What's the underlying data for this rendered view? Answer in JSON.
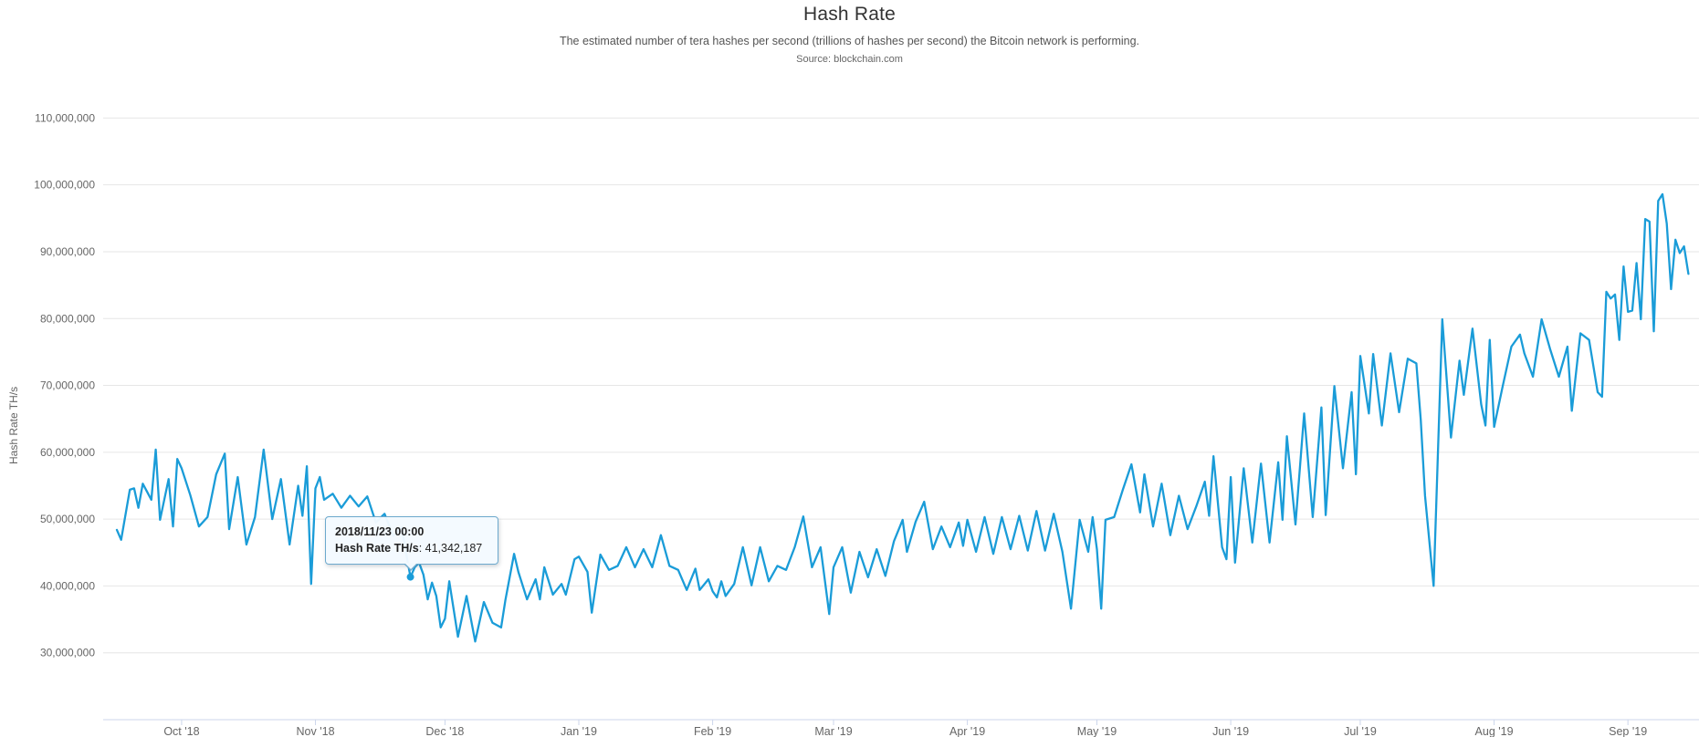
{
  "header": {
    "title": "Hash Rate",
    "subtitle": "The estimated number of tera hashes per second (trillions of hashes per second) the Bitcoin network is performing.",
    "source": "Source: blockchain.com"
  },
  "y_axis": {
    "title": "Hash Rate TH/s",
    "tick_values_m": [
      30,
      40,
      50,
      60,
      70,
      80,
      90,
      100,
      110
    ],
    "tick_labels": [
      "30,000,000",
      "40,000,000",
      "50,000,000",
      "60,000,000",
      "70,000,000",
      "80,000,000",
      "90,000,000",
      "100,000,000",
      "110,000,000"
    ]
  },
  "x_axis": {
    "tick_labels": [
      "Oct '18",
      "Nov '18",
      "Dec '18",
      "Jan '19",
      "Feb '19",
      "Mar '19",
      "Apr '19",
      "May '19",
      "Jun '19",
      "Jul '19",
      "Aug '19",
      "Sep '19"
    ],
    "tick_days": [
      15,
      46,
      76,
      107,
      138,
      166,
      197,
      227,
      258,
      288,
      319,
      350
    ]
  },
  "tooltip": {
    "date": "2018/11/23 00:00",
    "label": "Hash Rate TH/s",
    "separator": ": ",
    "value": "41,342,187",
    "point_day": 68,
    "point_value_m": 41.34
  },
  "colors": {
    "line": "#1a9cd8",
    "grid": "#e6e6e6",
    "axis": "#ccd6eb",
    "tick_text": "#666666",
    "title_text": "#333333",
    "tooltip_border": "#6da9cd"
  },
  "chart_data": {
    "type": "line",
    "title": "Hash Rate",
    "ylabel": "Hash Rate TH/s",
    "unit": "TH/s, stored in millions",
    "x_unit": "day offset from 2018-09-16, daily data",
    "start_date": "2018-09-16",
    "ylim_m": [
      20,
      115
    ],
    "grid": true,
    "legend": false,
    "series": [
      {
        "name": "Hash Rate",
        "points": [
          [
            0,
            48.4
          ],
          [
            1,
            46.9
          ],
          [
            3,
            54.4
          ],
          [
            4,
            54.6
          ],
          [
            5,
            51.7
          ],
          [
            6,
            55.3
          ],
          [
            8,
            52.9
          ],
          [
            9,
            60.4
          ],
          [
            10,
            49.9
          ],
          [
            12,
            56.0
          ],
          [
            13,
            48.9
          ],
          [
            14,
            59.0
          ],
          [
            15,
            57.6
          ],
          [
            17,
            53.6
          ],
          [
            19,
            48.9
          ],
          [
            21,
            50.3
          ],
          [
            23,
            56.7
          ],
          [
            25,
            59.8
          ],
          [
            26,
            48.5
          ],
          [
            28,
            56.3
          ],
          [
            30,
            46.2
          ],
          [
            32,
            50.3
          ],
          [
            34,
            60.4
          ],
          [
            36,
            50.0
          ],
          [
            38,
            56.0
          ],
          [
            40,
            46.2
          ],
          [
            42,
            55.0
          ],
          [
            43,
            50.5
          ],
          [
            44,
            57.9
          ],
          [
            45,
            40.3
          ],
          [
            46,
            54.6
          ],
          [
            47,
            56.3
          ],
          [
            48,
            52.9
          ],
          [
            50,
            53.8
          ],
          [
            52,
            51.7
          ],
          [
            54,
            53.5
          ],
          [
            56,
            51.9
          ],
          [
            58,
            53.4
          ],
          [
            60,
            49.5
          ],
          [
            62,
            50.8
          ],
          [
            64,
            47.5
          ],
          [
            66,
            48.8
          ],
          [
            67,
            44.9
          ],
          [
            68,
            41.34
          ],
          [
            69,
            42.8
          ],
          [
            70,
            43.5
          ],
          [
            71,
            41.7
          ],
          [
            72,
            38.0
          ],
          [
            73,
            40.5
          ],
          [
            74,
            38.5
          ],
          [
            75,
            33.8
          ],
          [
            76,
            35.1
          ],
          [
            77,
            40.7
          ],
          [
            79,
            32.4
          ],
          [
            81,
            38.5
          ],
          [
            83,
            31.7
          ],
          [
            85,
            37.6
          ],
          [
            87,
            34.5
          ],
          [
            89,
            33.8
          ],
          [
            90,
            37.9
          ],
          [
            92,
            44.8
          ],
          [
            93,
            42.1
          ],
          [
            95,
            38.0
          ],
          [
            97,
            41.0
          ],
          [
            98,
            38.0
          ],
          [
            99,
            42.8
          ],
          [
            101,
            38.7
          ],
          [
            103,
            40.3
          ],
          [
            104,
            38.7
          ],
          [
            106,
            44.0
          ],
          [
            107,
            44.4
          ],
          [
            109,
            42.1
          ],
          [
            110,
            36.0
          ],
          [
            112,
            44.7
          ],
          [
            114,
            42.4
          ],
          [
            116,
            43.0
          ],
          [
            118,
            45.8
          ],
          [
            120,
            42.8
          ],
          [
            122,
            45.5
          ],
          [
            124,
            42.8
          ],
          [
            126,
            47.6
          ],
          [
            128,
            43.0
          ],
          [
            130,
            42.4
          ],
          [
            132,
            39.4
          ],
          [
            134,
            42.6
          ],
          [
            135,
            39.4
          ],
          [
            137,
            41.0
          ],
          [
            138,
            39.2
          ],
          [
            139,
            38.3
          ],
          [
            140,
            40.7
          ],
          [
            141,
            38.5
          ],
          [
            143,
            40.3
          ],
          [
            145,
            45.8
          ],
          [
            147,
            40.1
          ],
          [
            149,
            45.8
          ],
          [
            151,
            40.7
          ],
          [
            153,
            43.0
          ],
          [
            155,
            42.4
          ],
          [
            157,
            45.8
          ],
          [
            159,
            50.4
          ],
          [
            161,
            42.8
          ],
          [
            163,
            45.8
          ],
          [
            165,
            35.8
          ],
          [
            166,
            42.8
          ],
          [
            168,
            45.8
          ],
          [
            170,
            39.0
          ],
          [
            172,
            45.1
          ],
          [
            174,
            41.3
          ],
          [
            176,
            45.5
          ],
          [
            178,
            41.5
          ],
          [
            180,
            46.7
          ],
          [
            182,
            49.9
          ],
          [
            183,
            45.1
          ],
          [
            185,
            49.6
          ],
          [
            187,
            52.6
          ],
          [
            189,
            45.5
          ],
          [
            191,
            48.9
          ],
          [
            193,
            45.8
          ],
          [
            195,
            49.5
          ],
          [
            196,
            46.0
          ],
          [
            197,
            49.9
          ],
          [
            199,
            45.1
          ],
          [
            201,
            50.3
          ],
          [
            203,
            44.8
          ],
          [
            205,
            50.3
          ],
          [
            207,
            45.5
          ],
          [
            209,
            50.5
          ],
          [
            211,
            45.3
          ],
          [
            213,
            51.2
          ],
          [
            215,
            45.3
          ],
          [
            217,
            50.8
          ],
          [
            219,
            45.1
          ],
          [
            221,
            36.6
          ],
          [
            223,
            49.9
          ],
          [
            225,
            45.1
          ],
          [
            226,
            50.3
          ],
          [
            227,
            45.5
          ],
          [
            228,
            36.6
          ],
          [
            229,
            49.9
          ],
          [
            231,
            50.3
          ],
          [
            233,
            54.4
          ],
          [
            235,
            58.2
          ],
          [
            237,
            51.0
          ],
          [
            238,
            56.7
          ],
          [
            240,
            48.9
          ],
          [
            242,
            55.3
          ],
          [
            244,
            47.6
          ],
          [
            246,
            53.5
          ],
          [
            248,
            48.5
          ],
          [
            250,
            51.9
          ],
          [
            252,
            55.6
          ],
          [
            253,
            50.5
          ],
          [
            254,
            59.4
          ],
          [
            256,
            45.8
          ],
          [
            257,
            44.0
          ],
          [
            258,
            56.3
          ],
          [
            259,
            43.5
          ],
          [
            261,
            57.6
          ],
          [
            263,
            46.5
          ],
          [
            265,
            58.3
          ],
          [
            267,
            46.5
          ],
          [
            269,
            58.5
          ],
          [
            270,
            49.9
          ],
          [
            271,
            62.4
          ],
          [
            273,
            49.2
          ],
          [
            275,
            65.8
          ],
          [
            277,
            50.3
          ],
          [
            279,
            66.7
          ],
          [
            280,
            50.6
          ],
          [
            282,
            69.9
          ],
          [
            284,
            57.6
          ],
          [
            286,
            69.0
          ],
          [
            287,
            56.7
          ],
          [
            288,
            74.4
          ],
          [
            290,
            65.8
          ],
          [
            291,
            74.7
          ],
          [
            293,
            64.0
          ],
          [
            295,
            74.8
          ],
          [
            297,
            66.0
          ],
          [
            299,
            74.0
          ],
          [
            301,
            73.3
          ],
          [
            302,
            64.9
          ],
          [
            303,
            53.5
          ],
          [
            305,
            40.0
          ],
          [
            307,
            79.9
          ],
          [
            309,
            62.2
          ],
          [
            311,
            73.7
          ],
          [
            312,
            68.6
          ],
          [
            314,
            78.5
          ],
          [
            316,
            67.2
          ],
          [
            317,
            64.0
          ],
          [
            318,
            76.8
          ],
          [
            319,
            63.8
          ],
          [
            321,
            69.9
          ],
          [
            323,
            75.8
          ],
          [
            325,
            77.6
          ],
          [
            326,
            74.8
          ],
          [
            328,
            71.3
          ],
          [
            330,
            79.9
          ],
          [
            332,
            75.4
          ],
          [
            334,
            71.3
          ],
          [
            336,
            75.8
          ],
          [
            337,
            66.2
          ],
          [
            339,
            77.8
          ],
          [
            341,
            76.8
          ],
          [
            343,
            69.0
          ],
          [
            344,
            68.3
          ],
          [
            345,
            84.0
          ],
          [
            346,
            83.0
          ],
          [
            347,
            83.6
          ],
          [
            348,
            76.8
          ],
          [
            349,
            87.8
          ],
          [
            350,
            81.0
          ],
          [
            351,
            81.2
          ],
          [
            352,
            88.3
          ],
          [
            353,
            79.9
          ],
          [
            354,
            94.9
          ],
          [
            355,
            94.5
          ],
          [
            356,
            78.1
          ],
          [
            357,
            97.6
          ],
          [
            358,
            98.6
          ],
          [
            359,
            94.2
          ],
          [
            360,
            84.4
          ],
          [
            361,
            91.8
          ],
          [
            362,
            89.8
          ],
          [
            363,
            90.8
          ],
          [
            364,
            86.7
          ]
        ]
      }
    ]
  }
}
